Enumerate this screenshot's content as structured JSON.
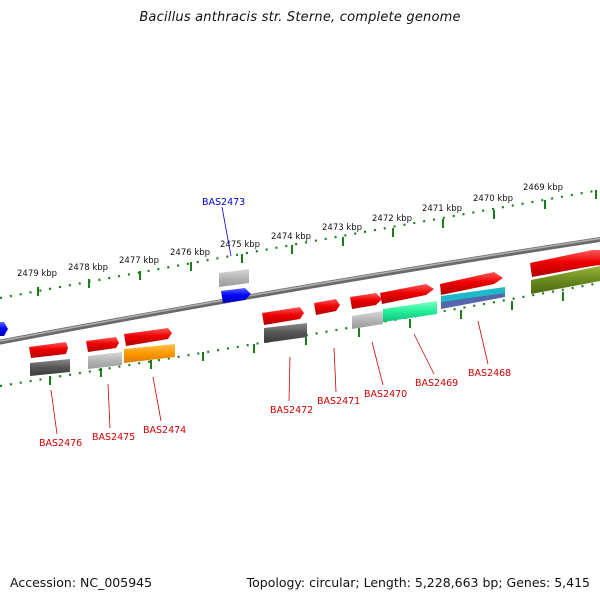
{
  "title": "Bacillus anthracis str. Sterne, complete genome",
  "footer": {
    "accession": "Accession: NC_005945",
    "stats": "Topology: circular; Length: 5,228,663 bp; Genes: 5,415"
  },
  "kbp_labels": [
    "2469 kbp",
    "2470 kbp",
    "2471 kbp",
    "2472 kbp",
    "2473 kbp",
    "2474 kbp",
    "2475 kbp",
    "2476 kbp",
    "2477 kbp",
    "2478 kbp",
    "2479 kbp"
  ],
  "gene_labels": {
    "top": [
      "BAS2473"
    ],
    "bottom": [
      "BAS2476",
      "BAS2475",
      "BAS2474",
      "BAS2472",
      "BAS2471",
      "BAS2470",
      "BAS2469",
      "BAS2468"
    ]
  },
  "colors": {
    "backbone": "#808080",
    "tick_line": "#1a7f1a",
    "gene_forward": "#ee0000",
    "label_bottom": "#cc0000",
    "label_top": "#0000cc",
    "highlight_gene": "#0000ff"
  }
}
